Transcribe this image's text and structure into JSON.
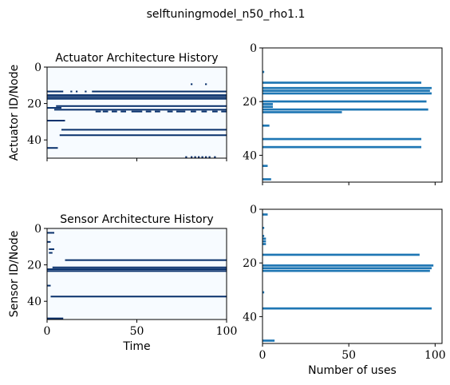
{
  "figure": {
    "suptitle": "selftuningmodel_n50_rho1.1",
    "colors": {
      "heat_background": "#f7fbff",
      "heat_on": "#08306b",
      "bar": "#1f77b4"
    }
  },
  "chart_data": [
    {
      "id": "actuator-history",
      "type": "heatmap",
      "title": "Actuator Architecture History",
      "xlabel": "",
      "ylabel": "Actuator ID/Node",
      "xlim": [
        0,
        100
      ],
      "ylim": [
        50,
        0
      ],
      "xticks": [
        0,
        50,
        100
      ],
      "yticks": [
        0,
        20,
        40
      ],
      "show_x_tick_labels": false,
      "cmap": "Blues",
      "active_segments": [
        {
          "node": 9,
          "x": [
            80,
            80
          ]
        },
        {
          "node": 9,
          "x": [
            88,
            88
          ]
        },
        {
          "node": 13,
          "x": [
            0,
            8
          ]
        },
        {
          "node": 13,
          "x": [
            13,
            13
          ]
        },
        {
          "node": 13,
          "x": [
            16,
            16
          ]
        },
        {
          "node": 13,
          "x": [
            21,
            21
          ]
        },
        {
          "node": 13,
          "x": [
            25,
            100
          ]
        },
        {
          "node": 15,
          "x": [
            0,
            100
          ]
        },
        {
          "node": 16,
          "x": [
            0,
            100
          ]
        },
        {
          "node": 17,
          "x": [
            0,
            100
          ]
        },
        {
          "node": 21,
          "x": [
            5,
            100
          ]
        },
        {
          "node": 22,
          "x": [
            0,
            7
          ]
        },
        {
          "node": 23,
          "x": [
            4,
            7
          ]
        },
        {
          "node": 23,
          "x": [
            8,
            100
          ]
        },
        {
          "node": 24,
          "x": [
            27,
            29
          ]
        },
        {
          "node": 24,
          "x": [
            31,
            33
          ]
        },
        {
          "node": 24,
          "x": [
            36,
            38
          ]
        },
        {
          "node": 24,
          "x": [
            41,
            43
          ]
        },
        {
          "node": 24,
          "x": [
            47,
            52
          ]
        },
        {
          "node": 24,
          "x": [
            55,
            57
          ]
        },
        {
          "node": 24,
          "x": [
            60,
            62
          ]
        },
        {
          "node": 24,
          "x": [
            67,
            69
          ]
        },
        {
          "node": 24,
          "x": [
            72,
            76
          ]
        },
        {
          "node": 24,
          "x": [
            80,
            82
          ]
        },
        {
          "node": 24,
          "x": [
            86,
            88
          ]
        },
        {
          "node": 24,
          "x": [
            92,
            94
          ]
        },
        {
          "node": 24,
          "x": [
            97,
            100
          ]
        },
        {
          "node": 29,
          "x": [
            0,
            9
          ]
        },
        {
          "node": 34,
          "x": [
            8,
            100
          ]
        },
        {
          "node": 37,
          "x": [
            7,
            100
          ]
        },
        {
          "node": 44,
          "x": [
            0,
            5
          ]
        },
        {
          "node": 49,
          "x": [
            77,
            77
          ]
        },
        {
          "node": 49,
          "x": [
            80,
            80
          ]
        },
        {
          "node": 49,
          "x": [
            82,
            82
          ]
        },
        {
          "node": 49,
          "x": [
            84,
            84
          ]
        },
        {
          "node": 49,
          "x": [
            86,
            86
          ]
        },
        {
          "node": 49,
          "x": [
            88,
            88
          ]
        },
        {
          "node": 49,
          "x": [
            90,
            90
          ]
        },
        {
          "node": 49,
          "x": [
            93,
            93
          ]
        }
      ]
    },
    {
      "id": "actuator-usage",
      "type": "bar",
      "orientation": "horizontal",
      "title": "",
      "xlabel": "",
      "ylabel": "",
      "xlim": [
        0,
        104
      ],
      "ylim": [
        50,
        0
      ],
      "xticks": [
        0,
        50,
        100
      ],
      "yticks": [
        0,
        20,
        40
      ],
      "show_x_tick_labels": false,
      "categories": [
        9,
        13,
        15,
        16,
        17,
        20,
        21,
        22,
        23,
        24,
        29,
        34,
        37,
        44,
        49
      ],
      "values": [
        1,
        92,
        98,
        97,
        98,
        95,
        6,
        6,
        96,
        46,
        4,
        92,
        92,
        3,
        5
      ]
    },
    {
      "id": "sensor-history",
      "type": "heatmap",
      "title": "Sensor Architecture History",
      "xlabel": "Time",
      "ylabel": "Sensor ID/Node",
      "xlim": [
        0,
        100
      ],
      "ylim": [
        50,
        0
      ],
      "xticks": [
        0,
        50,
        100
      ],
      "yticks": [
        0,
        20,
        40
      ],
      "cmap": "Blues",
      "active_segments": [
        {
          "node": 2,
          "x": [
            0,
            3
          ]
        },
        {
          "node": 7,
          "x": [
            0,
            1
          ]
        },
        {
          "node": 11,
          "x": [
            1,
            3
          ]
        },
        {
          "node": 13,
          "x": [
            1,
            2
          ]
        },
        {
          "node": 17,
          "x": [
            10,
            100
          ]
        },
        {
          "node": 21,
          "x": [
            3,
            100
          ]
        },
        {
          "node": 22,
          "x": [
            0,
            100
          ]
        },
        {
          "node": 23,
          "x": [
            0,
            100
          ]
        },
        {
          "node": 31,
          "x": [
            0,
            1
          ]
        },
        {
          "node": 37,
          "x": [
            2,
            100
          ]
        },
        {
          "node": 49,
          "x": [
            0,
            8
          ]
        }
      ]
    },
    {
      "id": "sensor-usage",
      "type": "bar",
      "orientation": "horizontal",
      "title": "",
      "xlabel": "Number of uses",
      "ylabel": "",
      "xlim": [
        0,
        104
      ],
      "ylim": [
        50,
        0
      ],
      "xticks": [
        0,
        50,
        100
      ],
      "yticks": [
        0,
        20,
        40
      ],
      "categories": [
        2,
        7,
        10,
        11,
        12,
        13,
        17,
        21,
        22,
        23,
        31,
        37,
        49
      ],
      "values": [
        3,
        1,
        1,
        2,
        2,
        2,
        91,
        99,
        98,
        97,
        1,
        98,
        7
      ]
    }
  ]
}
